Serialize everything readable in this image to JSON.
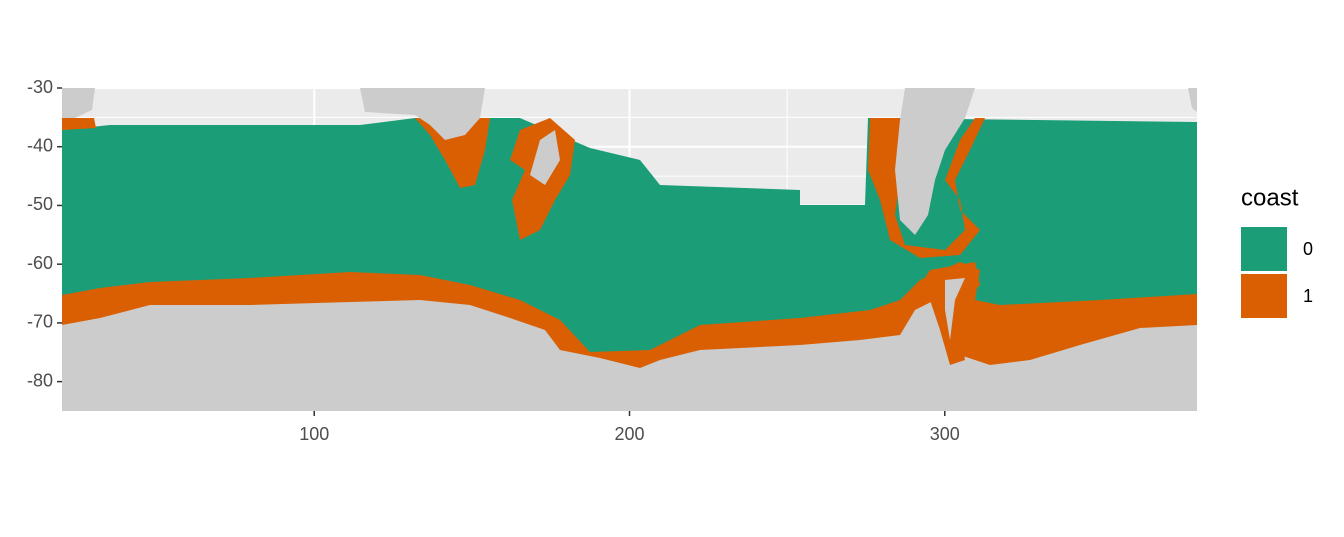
{
  "chart_data": {
    "type": "raster",
    "xlim": [
      20,
      380
    ],
    "xticks": [
      100,
      200,
      300
    ],
    "ylim": [
      -85,
      -30
    ],
    "yticks": [
      -30,
      -40,
      -50,
      -60,
      -70,
      -80
    ],
    "grid": true,
    "land_color": "#cccccc",
    "legend": {
      "title": "coast",
      "position": "right",
      "entries": [
        {
          "label": "0",
          "color": "#1b9e77"
        },
        {
          "label": "1",
          "color": "#d95f02"
        }
      ]
    }
  }
}
